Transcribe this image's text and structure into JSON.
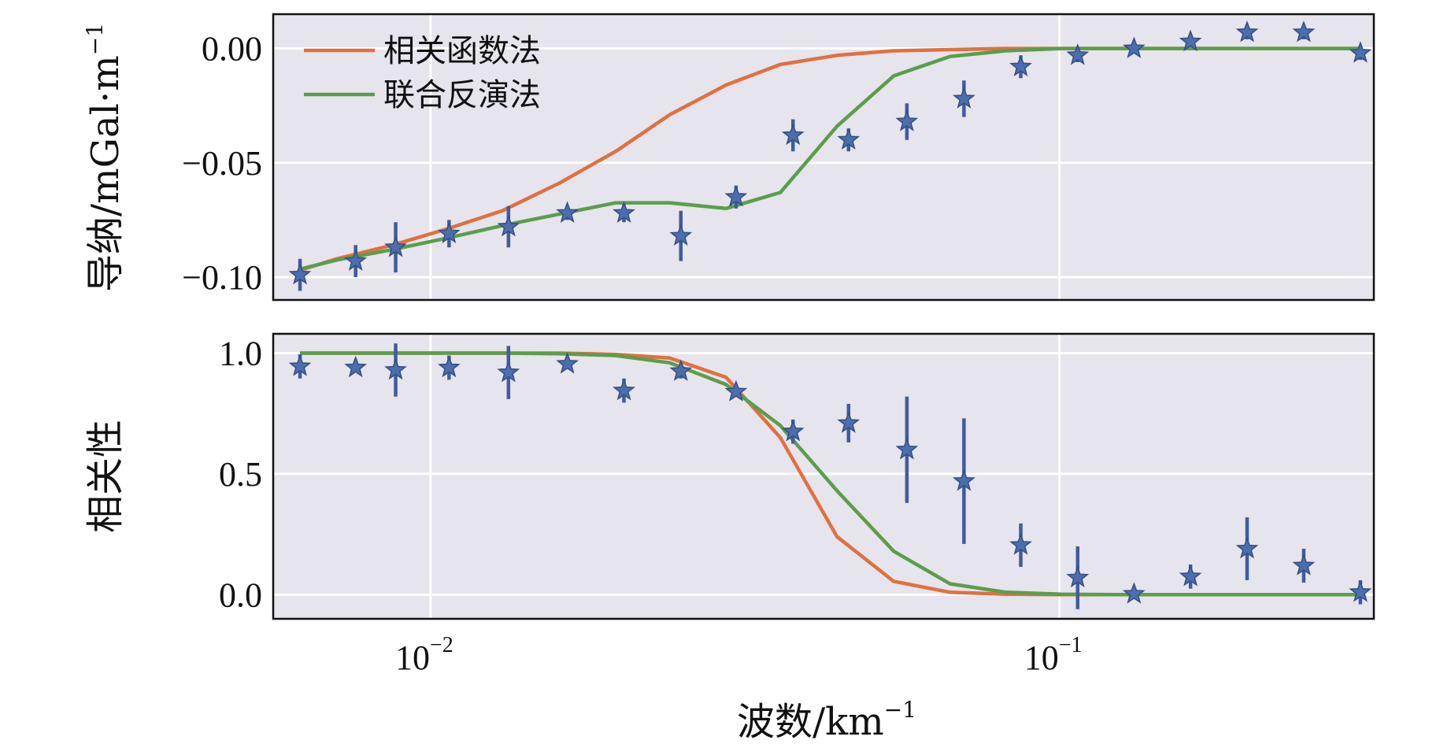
{
  "chart_data": [
    {
      "type": "line",
      "panel": "top",
      "x_scale": "log",
      "ylabel": "导纳/mGal·m",
      "ylabel_sup": "−1",
      "ylim": [
        -0.11,
        0.015
      ],
      "yticks": [
        0.0,
        -0.05,
        -0.1
      ],
      "ytick_labels": [
        "0.00",
        "−0.05",
        "−0.10"
      ],
      "grid": true,
      "legend_position": "top-left",
      "series": [
        {
          "name": "相关函数法",
          "color": "#E1703F",
          "x": [
            0.0062,
            0.0071,
            0.0087,
            0.0106,
            0.013,
            0.016,
            0.0197,
            0.024,
            0.0295,
            0.036,
            0.0443,
            0.0545,
            0.067,
            0.0822,
            0.101,
            0.124,
            0.152,
            0.187,
            0.23,
            0.3
          ],
          "y": [
            -0.097,
            -0.092,
            -0.086,
            -0.079,
            -0.071,
            -0.059,
            -0.045,
            -0.029,
            -0.016,
            -0.007,
            -0.003,
            -0.001,
            -0.0005,
            0.0,
            0.0,
            0.0,
            0.0,
            0.0,
            0.0,
            0.0
          ]
        },
        {
          "name": "联合反演法",
          "color": "#5A9E4B",
          "x": [
            0.0062,
            0.0071,
            0.0087,
            0.0106,
            0.013,
            0.016,
            0.0197,
            0.024,
            0.0295,
            0.036,
            0.0443,
            0.0545,
            0.067,
            0.0822,
            0.101,
            0.124,
            0.152,
            0.187,
            0.23,
            0.3
          ],
          "y": [
            -0.0965,
            -0.0925,
            -0.088,
            -0.083,
            -0.0775,
            -0.0725,
            -0.0675,
            -0.0675,
            -0.07,
            -0.063,
            -0.034,
            -0.012,
            -0.0035,
            -0.001,
            0.0,
            0.0,
            0.0,
            0.0,
            0.0,
            0.0
          ]
        }
      ],
      "points": {
        "color": "#4C6DAF",
        "x": [
          0.0062,
          0.0076,
          0.0088,
          0.0107,
          0.0133,
          0.0165,
          0.0203,
          0.025,
          0.0306,
          0.0377,
          0.0462,
          0.0572,
          0.0705,
          0.0868,
          0.1069,
          0.1314,
          0.1616,
          0.1988,
          0.2446,
          0.301
        ],
        "y": [
          -0.099,
          -0.093,
          -0.087,
          -0.081,
          -0.078,
          -0.072,
          -0.072,
          -0.082,
          -0.065,
          -0.038,
          -0.04,
          -0.032,
          -0.022,
          -0.008,
          -0.003,
          0.0,
          0.003,
          0.007,
          0.007,
          -0.002
        ],
        "err": [
          0.007,
          0.007,
          0.011,
          0.006,
          0.009,
          0.003,
          0.004,
          0.011,
          0.005,
          0.007,
          0.005,
          0.008,
          0.008,
          0.005,
          0.003,
          0.002,
          0.002,
          0.003,
          0.003,
          0.003
        ]
      }
    },
    {
      "type": "line",
      "panel": "bottom",
      "x_scale": "log",
      "xlabel": "波数/km",
      "xlabel_sup": "−1",
      "xticks": [
        0.01,
        0.1
      ],
      "xtick_labels": [
        {
          "base": "10",
          "exp": "−2"
        },
        {
          "base": "10",
          "exp": "−1"
        }
      ],
      "ylabel": "相关性",
      "ylim": [
        -0.1,
        1.08
      ],
      "yticks": [
        0.0,
        0.5,
        1.0
      ],
      "ytick_labels": [
        "0.0",
        "0.5",
        "1.0"
      ],
      "grid": true,
      "series": [
        {
          "name": "相关函数法",
          "color": "#E1703F",
          "x": [
            0.0062,
            0.0071,
            0.0087,
            0.0106,
            0.013,
            0.016,
            0.0197,
            0.024,
            0.0295,
            0.036,
            0.0443,
            0.0545,
            0.067,
            0.0822,
            0.101,
            0.124,
            0.152,
            0.187,
            0.23,
            0.3
          ],
          "y": [
            1.0,
            1.0,
            1.0,
            1.0,
            1.0,
            1.0,
            0.995,
            0.98,
            0.9,
            0.65,
            0.24,
            0.055,
            0.01,
            0.002,
            0.0,
            0.0,
            0.0,
            0.0,
            0.0,
            0.0
          ]
        },
        {
          "name": "联合反演法",
          "color": "#5A9E4B",
          "x": [
            0.0062,
            0.0071,
            0.0087,
            0.0106,
            0.013,
            0.016,
            0.0197,
            0.024,
            0.0295,
            0.036,
            0.0443,
            0.0545,
            0.067,
            0.0822,
            0.101,
            0.124,
            0.152,
            0.187,
            0.23,
            0.3
          ],
          "y": [
            1.0,
            1.0,
            1.0,
            1.0,
            1.0,
            0.998,
            0.99,
            0.96,
            0.87,
            0.7,
            0.43,
            0.18,
            0.045,
            0.01,
            0.002,
            0.0,
            0.0,
            0.0,
            0.0,
            0.0
          ]
        }
      ],
      "points": {
        "color": "#4C6DAF",
        "x": [
          0.0062,
          0.0076,
          0.0088,
          0.0107,
          0.0133,
          0.0165,
          0.0203,
          0.025,
          0.0306,
          0.0377,
          0.0462,
          0.0572,
          0.0705,
          0.0868,
          0.1069,
          0.1314,
          0.1616,
          0.1988,
          0.2446,
          0.301
        ],
        "y": [
          0.945,
          0.94,
          0.93,
          0.94,
          0.92,
          0.955,
          0.845,
          0.925,
          0.84,
          0.675,
          0.71,
          0.6,
          0.47,
          0.205,
          0.07,
          0.003,
          0.075,
          0.19,
          0.12,
          0.01
        ],
        "err": [
          0.05,
          0.02,
          0.11,
          0.05,
          0.11,
          0.02,
          0.05,
          0.03,
          0.02,
          0.05,
          0.08,
          0.22,
          0.26,
          0.09,
          0.13,
          0.01,
          0.05,
          0.13,
          0.07,
          0.05
        ]
      }
    }
  ]
}
